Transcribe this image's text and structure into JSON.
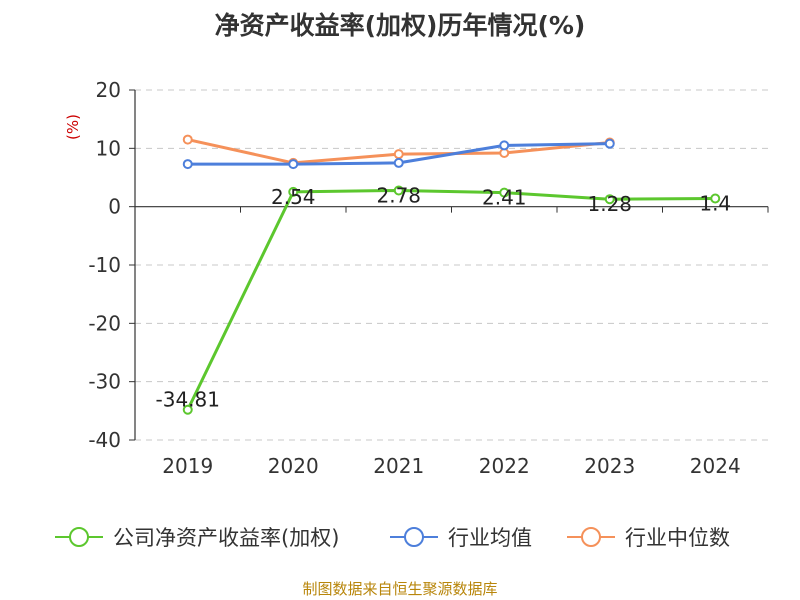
{
  "chart_data": {
    "type": "line",
    "title": "净资产收益率(加权)历年情况(%)",
    "unit_label": "(%)",
    "categories": [
      "2019",
      "2020",
      "2021",
      "2022",
      "2023",
      "2024"
    ],
    "ylim": [
      -40,
      20
    ],
    "yticks": [
      20,
      10,
      0,
      -10,
      -20,
      -30,
      -40
    ],
    "grid": true,
    "legend_position": "bottom",
    "series": [
      {
        "name": "公司净资产收益率(加权)",
        "color": "#5cc72e",
        "values": [
          -34.81,
          2.54,
          2.78,
          2.41,
          1.28,
          1.4
        ],
        "labels": [
          "-34.81",
          "2.54",
          "2.78",
          "2.41",
          "1.28",
          "1.4"
        ]
      },
      {
        "name": "行业均值",
        "color": "#4d7fdb",
        "values": [
          7.3,
          7.3,
          7.5,
          10.5,
          10.8,
          null
        ]
      },
      {
        "name": "行业中位数",
        "color": "#f5915a",
        "values": [
          11.5,
          7.5,
          9.0,
          9.2,
          11.0,
          null
        ]
      }
    ]
  },
  "source": "制图数据来自恒生聚源数据库"
}
